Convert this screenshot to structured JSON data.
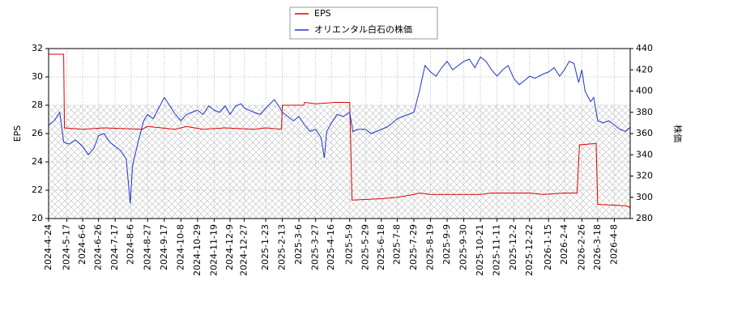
{
  "chart_data": {
    "type": "line",
    "ylabel": "EPS",
    "y2label": "株価",
    "xlim": [
      "2024-4-24",
      "2026-4-28"
    ],
    "xticks": [
      "2024-4-24",
      "2024-5-17",
      "2024-6-6",
      "2024-6-26",
      "2024-7-17",
      "2024-8-6",
      "2024-8-27",
      "2024-9-17",
      "2024-10-8",
      "2024-10-29",
      "2024-11-19",
      "2024-12-9",
      "2024-12-27",
      "2025-1-23",
      "2025-2-13",
      "2025-3-6",
      "2025-3-27",
      "2025-4-16",
      "2025-5-9",
      "2025-5-29",
      "2025-6-18",
      "2025-7-8",
      "2025-7-29",
      "2025-8-19",
      "2025-9-9",
      "2025-9-30",
      "2025-10-21",
      "2025-11-11",
      "2025-12-2",
      "2025-12-22",
      "2026-1-15",
      "2026-2-4",
      "2026-2-26",
      "2026-3-18",
      "2026-4-8"
    ],
    "ylim": [
      20,
      32
    ],
    "yticks": [
      20,
      22,
      24,
      26,
      28,
      30,
      32
    ],
    "y2lim": [
      280,
      440
    ],
    "y2ticks": [
      280,
      300,
      320,
      340,
      360,
      380,
      400,
      420,
      440
    ],
    "grid": true,
    "legend": "top",
    "series": [
      {
        "name": "EPS",
        "color": "#dd0000",
        "x": [
          "2024-4-24",
          "2024-5-13",
          "2024-5-14",
          "2024-6-6",
          "2024-7-3",
          "2024-8-20",
          "2024-8-27",
          "2024-10-1",
          "2024-10-15",
          "2024-11-5",
          "2024-12-3",
          "2025-1-8",
          "2025-1-23",
          "2025-2-12",
          "2025-2-13",
          "2025-3-12",
          "2025-3-13",
          "2025-3-27",
          "2025-4-21",
          "2025-5-9",
          "2025-5-12",
          "2025-6-18",
          "2025-7-8",
          "2025-7-29",
          "2025-8-5",
          "2025-8-19",
          "2025-10-21",
          "2025-11-4",
          "2025-12-22",
          "2026-1-8",
          "2026-2-4",
          "2026-2-20",
          "2026-2-23",
          "2026-3-16",
          "2026-3-18",
          "2026-4-22",
          "2026-4-28"
        ],
        "values": [
          31.6,
          31.6,
          26.4,
          26.3,
          26.4,
          26.3,
          26.5,
          26.3,
          26.5,
          26.3,
          26.4,
          26.3,
          26.4,
          26.3,
          28.0,
          28.0,
          28.2,
          28.1,
          28.2,
          28.2,
          21.3,
          21.4,
          21.5,
          21.7,
          21.8,
          21.7,
          21.7,
          21.8,
          21.8,
          21.7,
          21.8,
          21.8,
          25.2,
          25.3,
          21.0,
          20.9,
          20.8
        ]
      },
      {
        "name": "オリエンタル白石の株価",
        "color": "#2233cc",
        "axis": "y2",
        "x": [
          "2024-4-24",
          "2024-5-1",
          "2024-5-8",
          "2024-5-13",
          "2024-5-20",
          "2024-5-28",
          "2024-6-6",
          "2024-6-13",
          "2024-6-20",
          "2024-6-26",
          "2024-7-3",
          "2024-7-10",
          "2024-7-17",
          "2024-7-24",
          "2024-7-31",
          "2024-8-5",
          "2024-8-8",
          "2024-8-15",
          "2024-8-22",
          "2024-8-27",
          "2024-9-3",
          "2024-9-10",
          "2024-9-17",
          "2024-9-24",
          "2024-10-1",
          "2024-10-8",
          "2024-10-15",
          "2024-10-22",
          "2024-10-29",
          "2024-11-5",
          "2024-11-12",
          "2024-11-19",
          "2024-11-26",
          "2024-12-3",
          "2024-12-9",
          "2024-12-16",
          "2024-12-23",
          "2024-12-27",
          "2025-1-8",
          "2025-1-16",
          "2025-1-23",
          "2025-2-3",
          "2025-2-10",
          "2025-2-13",
          "2025-2-20",
          "2025-2-27",
          "2025-3-6",
          "2025-3-13",
          "2025-3-20",
          "2025-3-27",
          "2025-4-3",
          "2025-4-7",
          "2025-4-10",
          "2025-4-16",
          "2025-4-23",
          "2025-5-1",
          "2025-5-9",
          "2025-5-13",
          "2025-5-20",
          "2025-5-29",
          "2025-6-5",
          "2025-6-12",
          "2025-6-18",
          "2025-6-25",
          "2025-7-2",
          "2025-7-8",
          "2025-7-15",
          "2025-7-22",
          "2025-7-29",
          "2025-8-5",
          "2025-8-12",
          "2025-8-19",
          "2025-8-26",
          "2025-9-2",
          "2025-9-9",
          "2025-9-16",
          "2025-9-23",
          "2025-9-30",
          "2025-10-7",
          "2025-10-14",
          "2025-10-21",
          "2025-10-28",
          "2025-11-4",
          "2025-11-11",
          "2025-11-18",
          "2025-11-25",
          "2025-12-2",
          "2025-12-9",
          "2025-12-16",
          "2025-12-22",
          "2025-12-29",
          "2026-1-8",
          "2026-1-15",
          "2026-1-22",
          "2026-1-29",
          "2026-2-4",
          "2026-2-10",
          "2026-2-16",
          "2026-2-22",
          "2026-2-26",
          "2026-3-2",
          "2026-3-9",
          "2026-3-13",
          "2026-3-18",
          "2026-3-25",
          "2026-4-1",
          "2026-4-8",
          "2026-4-15",
          "2026-4-22",
          "2026-4-28"
        ],
        "values": [
          368,
          372,
          380,
          352,
          350,
          354,
          348,
          340,
          346,
          358,
          360,
          352,
          348,
          344,
          336,
          294,
          330,
          352,
          372,
          378,
          374,
          384,
          394,
          386,
          378,
          372,
          378,
          380,
          382,
          378,
          386,
          382,
          380,
          386,
          378,
          386,
          388,
          384,
          380,
          378,
          384,
          392,
          384,
          380,
          376,
          372,
          376,
          368,
          362,
          364,
          356,
          337,
          362,
          370,
          378,
          376,
          380,
          362,
          364,
          364,
          360,
          362,
          364,
          366,
          370,
          374,
          376,
          378,
          380,
          400,
          424,
          418,
          414,
          422,
          428,
          420,
          424,
          428,
          430,
          422,
          432,
          428,
          420,
          414,
          420,
          424,
          412,
          406,
          410,
          414,
          412,
          416,
          418,
          422,
          414,
          420,
          428,
          426,
          408,
          420,
          400,
          390,
          394,
          372,
          370,
          372,
          368,
          364,
          362,
          366
        ]
      }
    ]
  }
}
